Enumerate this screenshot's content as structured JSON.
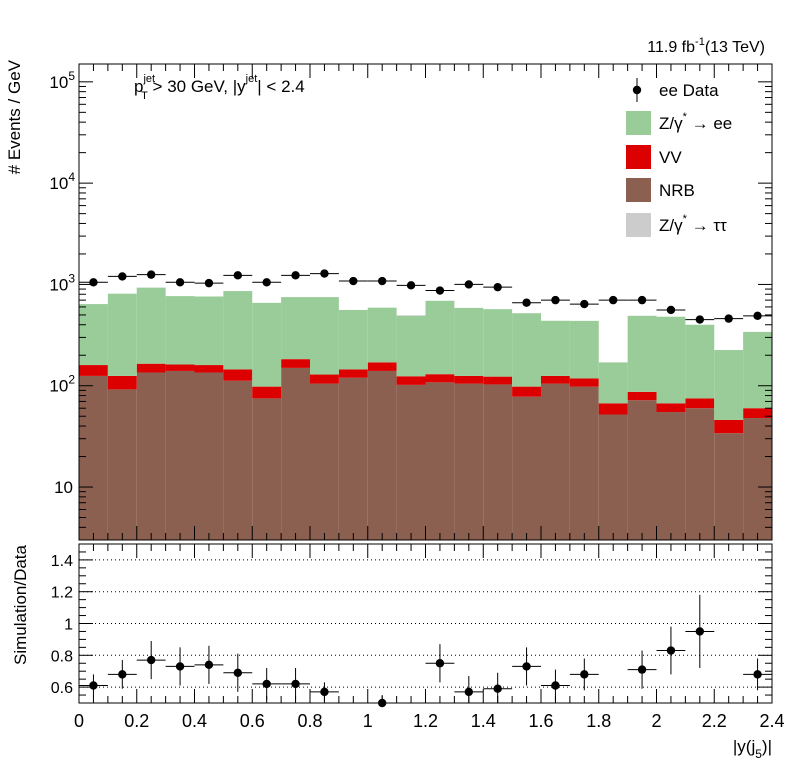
{
  "header": {
    "lumi": "11.9 fb",
    "lumi_sup": "-1",
    "lumi_energy": "(13 TeV)"
  },
  "selection": {
    "pt": "p",
    "pt_sup": "jet",
    "pt_sub": "T",
    "pt_cut": " > 30 GeV,  |y",
    "y_sup": "jet",
    "y_cut": "| < 2.4"
  },
  "colors": {
    "zee": "#99cc99",
    "vv": "#dd0000",
    "nrb": "#8b6050",
    "ztautau": "#cccccc",
    "data": "#000000"
  },
  "chart_data": [
    {
      "type": "bar",
      "stacked": true,
      "log_y": true,
      "ylabel": "# Events / GeV",
      "ylim": [
        3,
        150000
      ],
      "xlim": [
        0,
        2.4
      ],
      "y_ticks": [
        {
          "value": 10,
          "label": "10"
        },
        {
          "value": 100,
          "label": "10",
          "sup": "2"
        },
        {
          "value": 1000,
          "label": "10",
          "sup": "3"
        },
        {
          "value": 10000,
          "label": "10",
          "sup": "4"
        },
        {
          "value": 100000,
          "label": "10",
          "sup": "5"
        }
      ],
      "bin_edges": [
        0,
        0.1,
        0.2,
        0.3,
        0.4,
        0.5,
        0.6,
        0.7,
        0.8,
        0.9,
        1.0,
        1.1,
        1.2,
        1.3,
        1.4,
        1.5,
        1.6,
        1.7,
        1.8,
        1.9,
        2.0,
        2.1,
        2.2,
        2.3,
        2.4
      ],
      "legend_position": "top-right",
      "legend": [
        {
          "key": "data",
          "label": "ee Data",
          "marker": "point"
        },
        {
          "key": "zee",
          "label": "Z/γ",
          "sup": "*",
          "suffix": " → ee",
          "marker": "box"
        },
        {
          "key": "vv",
          "label": "VV",
          "marker": "box"
        },
        {
          "key": "nrb",
          "label": "NRB",
          "marker": "box"
        },
        {
          "key": "ztautau",
          "label": "Z/γ",
          "sup": "*",
          "suffix": " → ττ",
          "marker": "box"
        }
      ],
      "series": [
        {
          "key": "nrb",
          "values": [
            125,
            92,
            135,
            140,
            135,
            112,
            75,
            150,
            105,
            120,
            140,
            102,
            108,
            105,
            103,
            78,
            105,
            98,
            52,
            72,
            55,
            60,
            34,
            48
          ]
        },
        {
          "key": "vv",
          "values": [
            35,
            33,
            30,
            22,
            25,
            33,
            23,
            33,
            24,
            25,
            30,
            22,
            22,
            20,
            20,
            20,
            20,
            20,
            15,
            15,
            12,
            15,
            12,
            12
          ]
        },
        {
          "key": "zee",
          "values": [
            480,
            685,
            765,
            605,
            600,
            715,
            560,
            567,
            621,
            415,
            420,
            366,
            560,
            462,
            447,
            422,
            313,
            319,
            103,
            403,
            413,
            325,
            179,
            280
          ]
        },
        {
          "key": "ztautau",
          "values": [
            0,
            0,
            0,
            0,
            0,
            0,
            0,
            0,
            0,
            0,
            0,
            7,
            0,
            0,
            0,
            0,
            0,
            0,
            0,
            0,
            0,
            0,
            0,
            0
          ]
        }
      ],
      "data_points": {
        "name": "ee Data",
        "x": [
          0.05,
          0.15,
          0.25,
          0.35,
          0.45,
          0.55,
          0.65,
          0.75,
          0.85,
          0.95,
          1.05,
          1.15,
          1.25,
          1.35,
          1.45,
          1.55,
          1.65,
          1.75,
          1.85,
          1.95,
          2.05,
          2.15,
          2.25,
          2.35
        ],
        "y": [
          1050,
          1200,
          1250,
          1050,
          1030,
          1230,
          1050,
          1230,
          1280,
          1080,
          1080,
          980,
          870,
          1000,
          940,
          660,
          700,
          640,
          700,
          700,
          560,
          450,
          460,
          490
        ]
      }
    },
    {
      "type": "scatter",
      "ylabel": "Simulation/Data",
      "xlabel": "|y(j",
      "xlabel_sub": "5",
      "xlabel_end": ")|",
      "xlim": [
        0,
        2.4
      ],
      "ylim": [
        0.5,
        1.5
      ],
      "grid_y": [
        0.6,
        0.8,
        1.0,
        1.2,
        1.4
      ],
      "y_ticks": [
        {
          "value": 0.6,
          "label": "0.6"
        },
        {
          "value": 0.8,
          "label": "0.8"
        },
        {
          "value": 1.0,
          "label": "1"
        },
        {
          "value": 1.2,
          "label": "1.2"
        },
        {
          "value": 1.4,
          "label": "1.4"
        }
      ],
      "x_ticks": [
        {
          "value": 0,
          "label": "0"
        },
        {
          "value": 0.2,
          "label": "0.2"
        },
        {
          "value": 0.4,
          "label": "0.4"
        },
        {
          "value": 0.6,
          "label": "0.6"
        },
        {
          "value": 0.8,
          "label": "0.8"
        },
        {
          "value": 1.0,
          "label": "1"
        },
        {
          "value": 1.2,
          "label": "1.2"
        },
        {
          "value": 1.4,
          "label": "1.4"
        },
        {
          "value": 1.6,
          "label": "1.6"
        },
        {
          "value": 1.8,
          "label": "1.8"
        },
        {
          "value": 2.0,
          "label": "2"
        },
        {
          "value": 2.2,
          "label": "2.2"
        },
        {
          "value": 2.4,
          "label": "2.4"
        }
      ],
      "points": [
        {
          "x": 0.05,
          "y": 0.61,
          "err": 0.07
        },
        {
          "x": 0.15,
          "y": 0.68,
          "err": 0.09
        },
        {
          "x": 0.25,
          "y": 0.77,
          "err": 0.12
        },
        {
          "x": 0.35,
          "y": 0.73,
          "err": 0.12
        },
        {
          "x": 0.45,
          "y": 0.74,
          "err": 0.12
        },
        {
          "x": 0.55,
          "y": 0.69,
          "err": 0.12
        },
        {
          "x": 0.65,
          "y": 0.62,
          "err": 0.1
        },
        {
          "x": 0.75,
          "y": 0.62,
          "err": 0.1
        },
        {
          "x": 0.85,
          "y": 0.57,
          "err": 0.06
        },
        {
          "x": 1.05,
          "y": 0.5,
          "err": 0.05
        },
        {
          "x": 1.25,
          "y": 0.75,
          "err": 0.12
        },
        {
          "x": 1.35,
          "y": 0.57,
          "err": 0.1
        },
        {
          "x": 1.45,
          "y": 0.59,
          "err": 0.1
        },
        {
          "x": 1.55,
          "y": 0.73,
          "err": 0.12
        },
        {
          "x": 1.65,
          "y": 0.61,
          "err": 0.1
        },
        {
          "x": 1.75,
          "y": 0.68,
          "err": 0.1
        },
        {
          "x": 1.95,
          "y": 0.71,
          "err": 0.12
        },
        {
          "x": 2.05,
          "y": 0.83,
          "err": 0.15
        },
        {
          "x": 2.15,
          "y": 0.95,
          "err": 0.23
        },
        {
          "x": 2.35,
          "y": 0.68,
          "err": 0.1
        }
      ]
    }
  ]
}
